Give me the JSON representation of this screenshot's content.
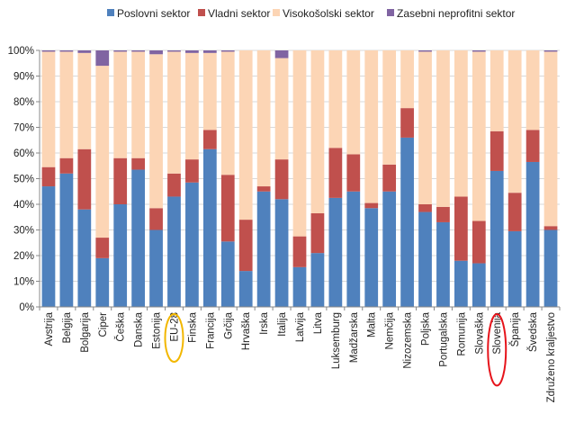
{
  "chart_data": {
    "type": "bar",
    "stacked": true,
    "orientation": "vertical",
    "title": "",
    "xlabel": "",
    "ylabel": "",
    "ylim": [
      0,
      100
    ],
    "y_ticks": [
      "0%",
      "10%",
      "20%",
      "30%",
      "40%",
      "50%",
      "60%",
      "70%",
      "80%",
      "90%",
      "100%"
    ],
    "grid": true,
    "legend_position": "top",
    "categories": [
      "Avstrija",
      "Belgija",
      "Bolgarija",
      "Ciper",
      "Češka",
      "Danska",
      "Estonija",
      "EU-28",
      "Finska",
      "Francija",
      "Grčija",
      "Hrvaška",
      "Irska",
      "Italija",
      "Latvija",
      "Litva",
      "Luksemburg",
      "Madžarska",
      "Malta",
      "Nemčija",
      "Nizozemska",
      "Poljska",
      "Portugalska",
      "Romunija",
      "Slovaška",
      "Slovenija",
      "Španija",
      "Švedska",
      "Združeno kraljestvo"
    ],
    "series": [
      {
        "name": "Poslovni sektor",
        "color": "#4f81bd",
        "values": [
          47,
          52,
          38,
          19,
          40,
          53.5,
          30,
          43,
          48.5,
          61.5,
          25.5,
          14,
          45,
          42,
          15.5,
          21,
          42.5,
          45,
          38.5,
          45,
          66,
          37,
          33,
          18,
          17,
          53,
          29.5,
          56.5,
          30
        ]
      },
      {
        "name": "Vladni sektor",
        "color": "#c0504d",
        "values": [
          7.5,
          6,
          23.5,
          8,
          18,
          4.5,
          8.5,
          9,
          9,
          7.5,
          26,
          20,
          2,
          15.5,
          12,
          15.5,
          19.5,
          14.5,
          2,
          10.5,
          11.5,
          3,
          6,
          25,
          16.5,
          15.5,
          15,
          12.5,
          1.5
        ]
      },
      {
        "name": "Visokošolski sektor",
        "color": "#fcd5b5",
        "values": [
          45,
          41.5,
          37.5,
          67,
          41.5,
          41.5,
          60,
          47.5,
          41.5,
          30,
          48,
          66,
          53,
          39.5,
          72.5,
          63.5,
          38,
          40.5,
          59.5,
          44.5,
          22.5,
          59.5,
          61,
          57,
          66,
          31.5,
          55.5,
          31,
          68
        ]
      },
      {
        "name": "Zasebni neprofitni sektor",
        "color": "#8064a2",
        "values": [
          0.5,
          0.5,
          1,
          6,
          0.5,
          0.5,
          1.5,
          0.5,
          1,
          1,
          0.5,
          0,
          0,
          3,
          0,
          0,
          0,
          0,
          0,
          0,
          0,
          0.5,
          0,
          0,
          0.5,
          0,
          0,
          0,
          0.5
        ]
      }
    ],
    "highlighted_categories": [
      {
        "category": "EU-28",
        "color": "#f2b700"
      },
      {
        "category": "Slovenija",
        "color": "#e6141b"
      }
    ]
  }
}
